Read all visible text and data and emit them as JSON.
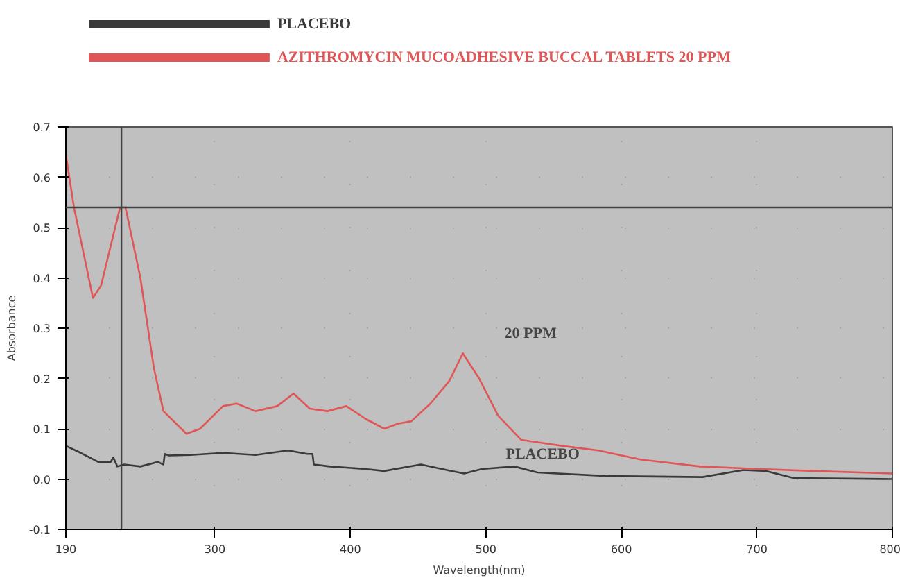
{
  "chart_data": {
    "type": "line",
    "xlabel": "Wavelength(nm)",
    "ylabel": "Absorbance",
    "xlim": [
      190,
      800
    ],
    "xticks": [
      190,
      300,
      400,
      500,
      600,
      700,
      800
    ],
    "ylim": [
      -0.1,
      0.7
    ],
    "yticks": [
      {
        "value": -0.1,
        "label": "-0.1"
      },
      {
        "value": 0,
        "label": "0.0"
      },
      0.1,
      0.2,
      0.3,
      0.4,
      0.5,
      0.6,
      0.7
    ],
    "grid": true,
    "legend": "top",
    "line_style": "solid",
    "marker": "none",
    "series": [
      {
        "name": "PLACEBO",
        "color": "#3a3a3a",
        "x": [
          190,
          201,
          214,
          223,
          225,
          228,
          233,
          245,
          258,
          262,
          263,
          266,
          282,
          306,
          330,
          354,
          368,
          372,
          373,
          385,
          411,
          425,
          452,
          473,
          484,
          497,
          521,
          538,
          589,
          660,
          690,
          707,
          727,
          800
        ],
        "values": [
          0.066,
          0.052,
          0.034,
          0.034,
          0.043,
          0.025,
          0.029,
          0.025,
          0.034,
          0.029,
          0.05,
          0.047,
          0.048,
          0.052,
          0.048,
          0.057,
          0.05,
          0.05,
          0.029,
          0.025,
          0.02,
          0.016,
          0.029,
          0.017,
          0.011,
          0.02,
          0.025,
          0.013,
          0.006,
          0.004,
          0.018,
          0.016,
          0.002,
          0.0
        ]
      },
      {
        "name": "AZITHROMYCIN MUCOADHESIVE BUCCAL TABLETS 20 PPM",
        "color": "#e05555",
        "x": [
          190,
          196,
          210,
          216,
          230,
          234,
          245,
          255,
          262,
          279,
          289,
          306,
          316,
          330,
          346,
          358,
          370,
          383,
          397,
          411,
          425,
          435,
          445,
          459,
          473,
          483,
          495,
          509,
          526,
          556,
          583,
          614,
          658,
          702,
          742,
          800
        ],
        "values": [
          0.645,
          0.54,
          0.36,
          0.385,
          0.54,
          0.54,
          0.4,
          0.22,
          0.135,
          0.09,
          0.1,
          0.145,
          0.15,
          0.135,
          0.145,
          0.17,
          0.14,
          0.135,
          0.145,
          0.12,
          0.1,
          0.11,
          0.115,
          0.15,
          0.195,
          0.25,
          0.2,
          0.126,
          0.078,
          0.066,
          0.057,
          0.039,
          0.025,
          0.02,
          0.016,
          0.011
        ]
      }
    ],
    "ref_lines": [
      {
        "axis": "x",
        "value": 231,
        "color": "#404040"
      },
      {
        "axis": "y",
        "value": 0.54,
        "color": "#404040"
      }
    ],
    "annotations": [
      {
        "text": "20 PPM",
        "x": 483,
        "y": 0.25
      },
      {
        "text": "PLACEBO",
        "x": 484,
        "y": 0.011
      }
    ]
  }
}
